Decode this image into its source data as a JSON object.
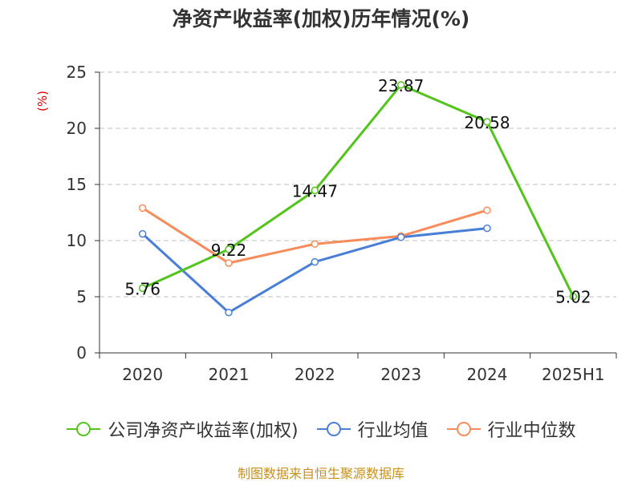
{
  "chart_data": {
    "type": "line",
    "title": "净资产收益率(加权)历年情况(%)",
    "ylabel": "(%)",
    "categories": [
      "2020",
      "2021",
      "2022",
      "2023",
      "2024",
      "2025H1"
    ],
    "ylim": [
      0,
      25
    ],
    "yticks": [
      0,
      5,
      10,
      15,
      20,
      25
    ],
    "grid": true,
    "legend_position": "bottom",
    "series": [
      {
        "name": "公司净资产收益率(加权)",
        "color": "#52c41a",
        "values": [
          5.76,
          9.22,
          14.47,
          23.87,
          20.58,
          5.02
        ],
        "labels": [
          "5.76",
          "9.22",
          "14.47",
          "23.87",
          "20.58",
          "5.02"
        ]
      },
      {
        "name": "行业均值",
        "color": "#4a7fd8",
        "values": [
          10.6,
          3.6,
          8.1,
          10.3,
          11.1,
          null
        ]
      },
      {
        "name": "行业中位数",
        "color": "#f78c5a",
        "values": [
          12.9,
          8.0,
          9.7,
          10.4,
          12.7,
          null
        ]
      }
    ]
  },
  "source_text": "制图数据来自恒生聚源数据库",
  "colors": {
    "source": "#c8901e",
    "ylabel": "#dd0000",
    "axis": "#333333",
    "grid": "#c0c0c0"
  }
}
